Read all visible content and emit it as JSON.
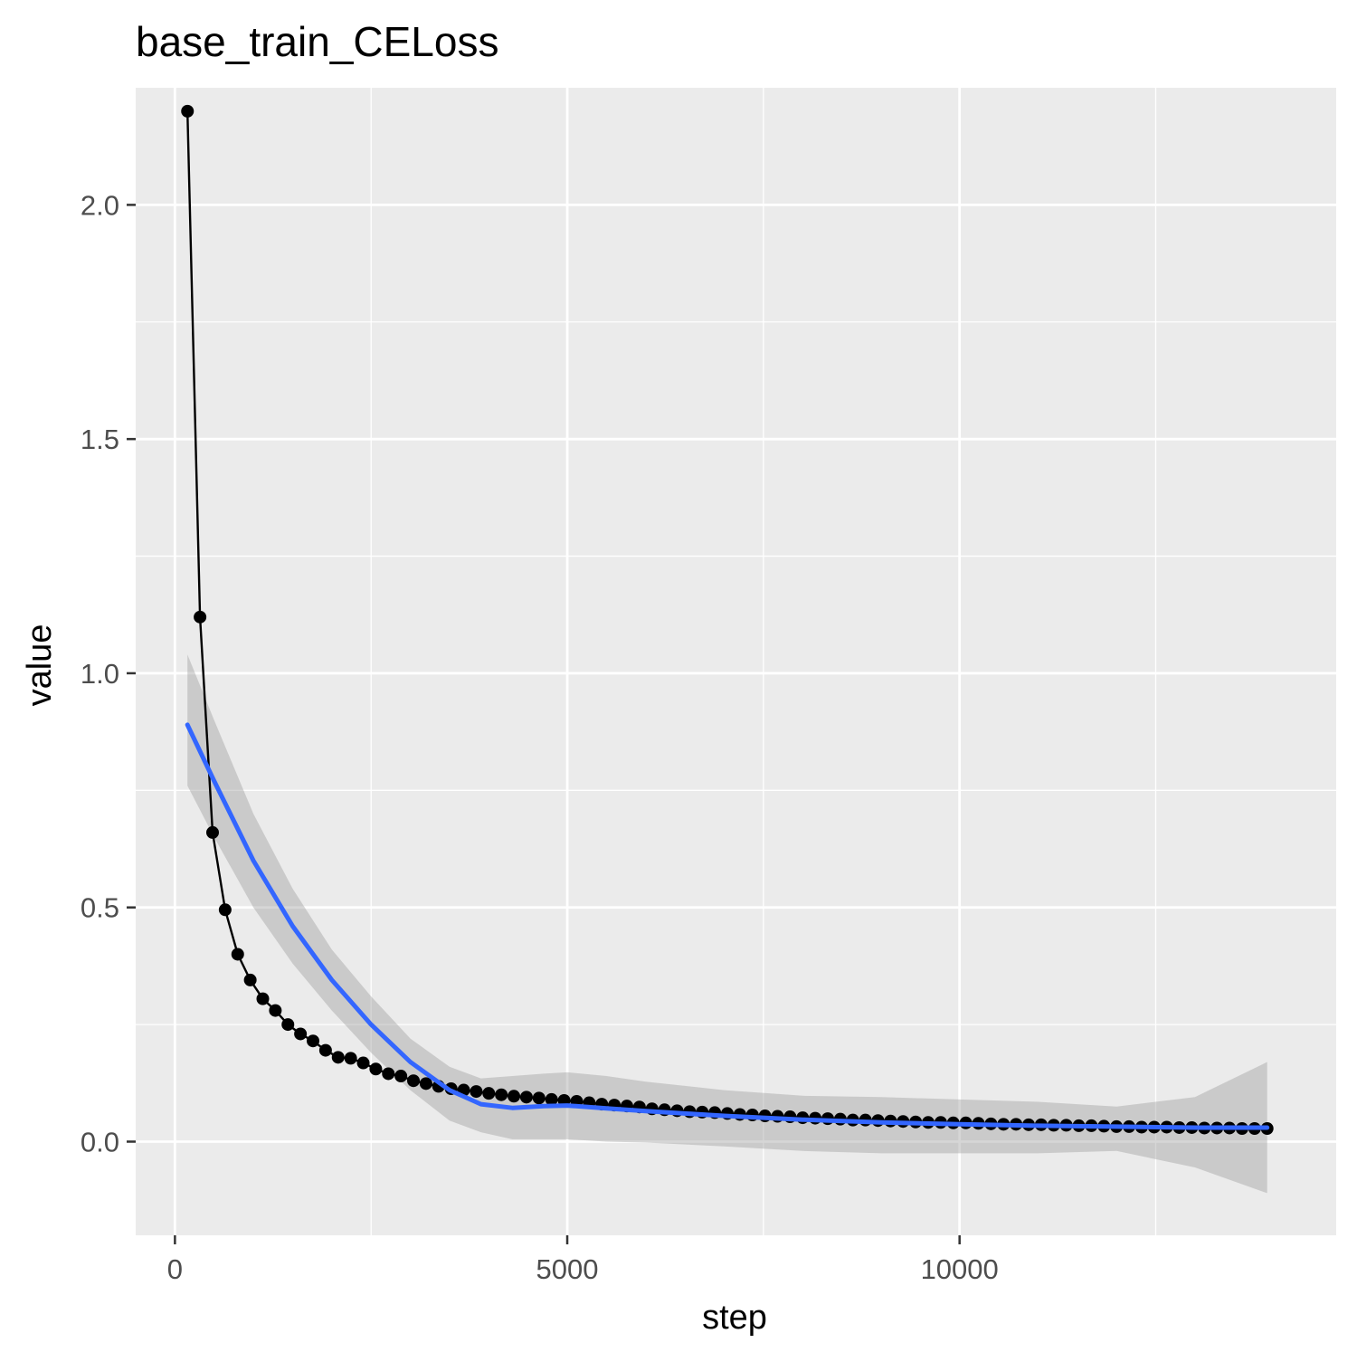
{
  "chart_data": {
    "type": "line",
    "title": "base_train_CELoss",
    "xlabel": "step",
    "ylabel": "value",
    "xlim": [
      -500,
      14800
    ],
    "ylim": [
      -0.2,
      2.25
    ],
    "x_ticks": [
      0,
      5000,
      10000
    ],
    "x_minor_ticks": [
      2500,
      7500,
      12500
    ],
    "y_ticks": [
      0.0,
      0.5,
      1.0,
      1.5,
      2.0
    ],
    "y_minor_ticks": [
      0.25,
      0.75,
      1.25,
      1.75
    ],
    "x_tick_labels": [
      "0",
      "5000",
      "10000"
    ],
    "y_tick_labels": [
      "0.0",
      "0.5",
      "1.0",
      "1.5",
      "2.0"
    ],
    "grid": true,
    "legend": "none",
    "colors": {
      "panel": "#ebebeb",
      "grid": "#ffffff",
      "line": "#000000",
      "smooth": "#3366ff",
      "ribbon": "#999999",
      "tick": "#333333"
    },
    "series": [
      {
        "type": "line+points",
        "x": [
          160,
          320,
          480,
          640,
          800,
          960,
          1120,
          1280,
          1440,
          1600,
          1760,
          1920,
          2080,
          2240,
          2400,
          2560,
          2720,
          2880,
          3040,
          3200,
          3360,
          3520,
          3680,
          3840,
          4000,
          4160,
          4320,
          4480,
          4640,
          4800,
          4960,
          5120,
          5280,
          5440,
          5600,
          5760,
          5920,
          6080,
          6240,
          6400,
          6560,
          6720,
          6880,
          7040,
          7200,
          7360,
          7520,
          7680,
          7840,
          8000,
          8160,
          8320,
          8480,
          8640,
          8800,
          8960,
          9120,
          9280,
          9440,
          9600,
          9760,
          9920,
          10080,
          10240,
          10400,
          10560,
          10720,
          10880,
          11040,
          11200,
          11360,
          11520,
          11680,
          11840,
          12000,
          12160,
          12320,
          12480,
          12640,
          12800,
          12960,
          13120,
          13280,
          13440,
          13600,
          13760,
          13920
        ],
        "values": [
          2.2,
          1.12,
          0.66,
          0.495,
          0.4,
          0.345,
          0.305,
          0.28,
          0.25,
          0.23,
          0.215,
          0.195,
          0.18,
          0.178,
          0.168,
          0.155,
          0.145,
          0.14,
          0.13,
          0.124,
          0.118,
          0.113,
          0.11,
          0.107,
          0.103,
          0.1,
          0.097,
          0.095,
          0.093,
          0.09,
          0.088,
          0.086,
          0.083,
          0.08,
          0.078,
          0.076,
          0.074,
          0.07,
          0.068,
          0.066,
          0.064,
          0.063,
          0.062,
          0.06,
          0.058,
          0.057,
          0.055,
          0.054,
          0.053,
          0.051,
          0.05,
          0.049,
          0.048,
          0.046,
          0.046,
          0.045,
          0.044,
          0.043,
          0.042,
          0.041,
          0.041,
          0.04,
          0.04,
          0.039,
          0.038,
          0.037,
          0.037,
          0.036,
          0.036,
          0.035,
          0.035,
          0.034,
          0.034,
          0.033,
          0.032,
          0.032,
          0.031,
          0.031,
          0.031,
          0.03,
          0.03,
          0.029,
          0.029,
          0.029,
          0.028,
          0.028,
          0.028
        ]
      },
      {
        "type": "smooth",
        "x": [
          160,
          500,
          1000,
          1500,
          2000,
          2500,
          3000,
          3500,
          3900,
          4300,
          4700,
          5000,
          5500,
          6000,
          7000,
          8000,
          9000,
          10000,
          11000,
          12000,
          13000,
          13920
        ],
        "values": [
          0.89,
          0.77,
          0.6,
          0.46,
          0.345,
          0.25,
          0.17,
          0.11,
          0.08,
          0.072,
          0.076,
          0.077,
          0.071,
          0.065,
          0.055,
          0.047,
          0.041,
          0.037,
          0.034,
          0.032,
          0.03,
          0.03
        ],
        "ci_upper": [
          1.04,
          0.9,
          0.7,
          0.54,
          0.41,
          0.31,
          0.22,
          0.16,
          0.135,
          0.14,
          0.145,
          0.148,
          0.14,
          0.128,
          0.11,
          0.098,
          0.095,
          0.09,
          0.085,
          0.075,
          0.095,
          0.17
        ],
        "ci_lower": [
          0.76,
          0.65,
          0.5,
          0.38,
          0.28,
          0.19,
          0.11,
          0.045,
          0.02,
          0.005,
          0.005,
          0.005,
          0.0,
          -0.002,
          -0.01,
          -0.02,
          -0.025,
          -0.025,
          -0.025,
          -0.02,
          -0.055,
          -0.11
        ]
      }
    ]
  }
}
